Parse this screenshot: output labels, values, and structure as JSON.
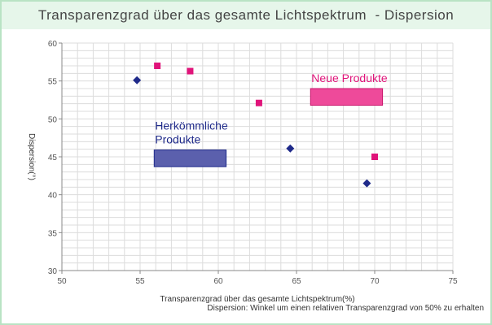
{
  "title": "Transparenzgrad über das gesamte Lichtspektrum  - Dispersion",
  "footnote": "Dispersion: Winkel um einen relativen Transparenzgrad von 50% zu erhalten",
  "chart_data": {
    "type": "scatter",
    "xlabel": "Transparenzgrad über das gesamte Lichtspektrum(%)",
    "ylabel": "Dispersion(°)",
    "xlim": [
      50,
      75
    ],
    "ylim": [
      30,
      60
    ],
    "xticks": [
      50,
      55,
      60,
      65,
      70,
      75
    ],
    "yticks": [
      30,
      35,
      40,
      45,
      50,
      55,
      60
    ],
    "grid": true,
    "series": [
      {
        "name": "Herkömmliche Produkte",
        "marker": "diamond",
        "color": "#1f2a8a",
        "points": [
          [
            54.8,
            55.1
          ],
          [
            64.6,
            46.1
          ],
          [
            69.5,
            41.5
          ]
        ]
      },
      {
        "name": "Neue Produkte",
        "marker": "square",
        "color": "#e0147a",
        "points": [
          [
            56.1,
            57.0
          ],
          [
            58.2,
            56.3
          ],
          [
            62.6,
            52.1
          ],
          [
            70.0,
            45.0
          ]
        ]
      }
    ],
    "annotations": [
      {
        "lines": [
          "Herkömmliche",
          "Produkte"
        ],
        "color": "#1f2a8a",
        "box_fill": "#5b60ad",
        "box_stroke": "#1f2a8a",
        "box_x": [
          55.9,
          60.5
        ],
        "box_y": [
          43.7,
          45.9
        ]
      },
      {
        "lines": [
          "Neue Produkte"
        ],
        "color": "#e0147a",
        "box_fill": "#ee4a9a",
        "box_stroke": "#c8146c",
        "box_x": [
          65.9,
          70.5
        ],
        "box_y": [
          51.8,
          54.0
        ]
      }
    ]
  }
}
